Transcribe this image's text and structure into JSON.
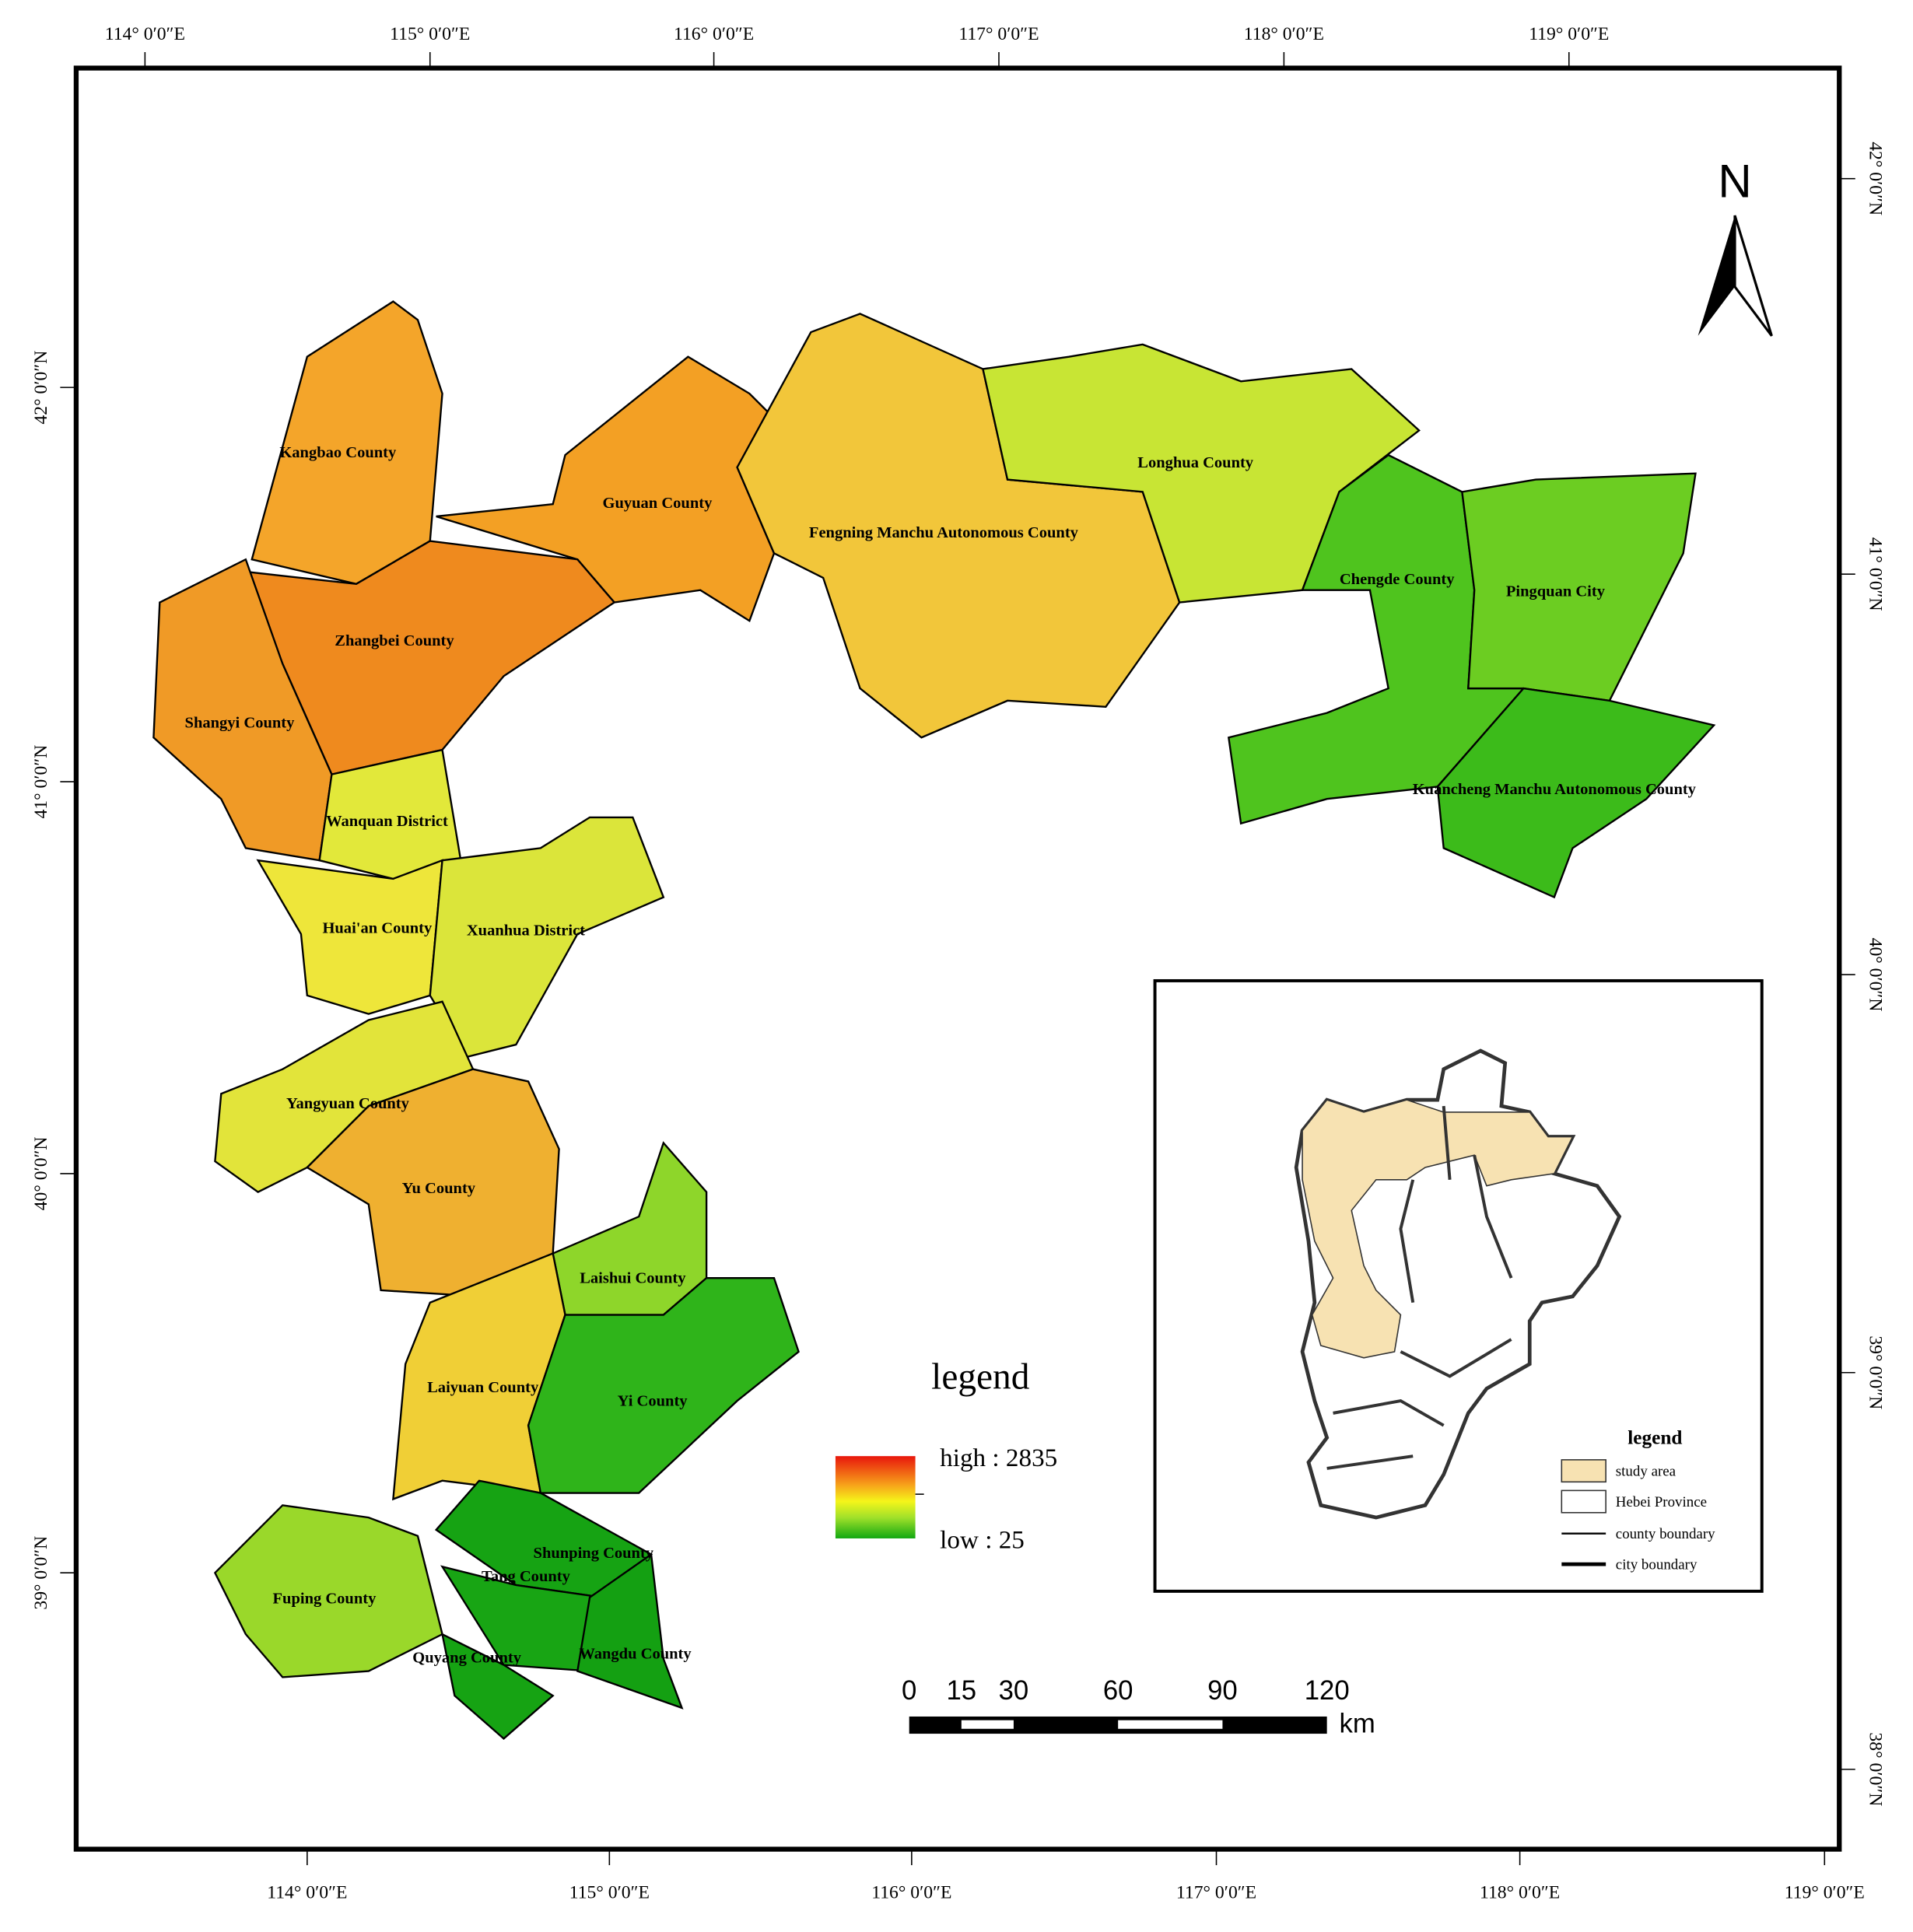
{
  "axes": {
    "top": [
      "114° 0′0″E",
      "115° 0′0″E",
      "116° 0′0″E",
      "117° 0′0″E",
      "118° 0′0″E",
      "119° 0′0″E"
    ],
    "bottom": [
      "114° 0′0″E",
      "115° 0′0″E",
      "116° 0′0″E",
      "117° 0′0″E",
      "118° 0′0″E",
      "119° 0′0″E"
    ],
    "left": [
      "42° 0′0″N",
      "41° 0′0″N",
      "40° 0′0″N",
      "39° 0′0″N"
    ],
    "right": [
      "42° 0′0″N",
      "41° 0′0″N",
      "40° 0′0″N",
      "39° 0′0″N",
      "38° 0′0″N"
    ]
  },
  "north": "N",
  "counties": [
    "Kangbao County",
    "Guyuan County",
    "Fengning Manchu Autonomous County",
    "Longhua County",
    "Chengde County",
    "Pingquan City",
    "Kuancheng Manchu Autonomous County",
    "Zhangbei County",
    "Shangyi County",
    "Wanquan District",
    "Huai'an County",
    "Xuanhua District",
    "Yangyuan County",
    "Yu County",
    "Laishui County",
    "Laiyuan County",
    "Yi County",
    "Fuping County",
    "Shunping County",
    "Tang County",
    "Quyang County",
    "Wangdu County"
  ],
  "legend": {
    "title": "legend",
    "high": "high : 2835",
    "low": "low : 25"
  },
  "scale_bar": {
    "ticks": [
      0,
      15,
      30,
      60,
      90,
      120
    ],
    "unit": "km"
  },
  "inset": {
    "legend_title": "legend",
    "entries": [
      "study area",
      "Hebei Province",
      "county boundary",
      "city boundary"
    ]
  }
}
